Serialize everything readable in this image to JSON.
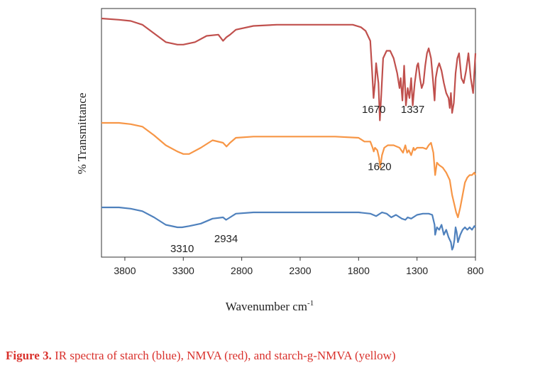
{
  "chart_data": {
    "type": "line",
    "title": "",
    "ylabel": "% Transmittance",
    "xlabel_main": "Wavenumber  cm",
    "xlabel_sup": "-1",
    "xlim": [
      4000,
      800
    ],
    "xticks": [
      3800,
      3300,
      2800,
      2300,
      1800,
      1300,
      800
    ],
    "grid": false,
    "legend": "none",
    "series": [
      {
        "color": "#c0504d",
        "x": [
          4000,
          3850,
          3750,
          3650,
          3550,
          3450,
          3350,
          3300,
          3200,
          3100,
          3000,
          2960,
          2930,
          2900,
          2850,
          2700,
          2500,
          2200,
          2000,
          1850,
          1780,
          1740,
          1700,
          1685,
          1672,
          1660,
          1650,
          1630,
          1618,
          1605,
          1590,
          1560,
          1530,
          1500,
          1470,
          1450,
          1440,
          1425,
          1410,
          1395,
          1380,
          1365,
          1350,
          1337,
          1320,
          1300,
          1290,
          1275,
          1260,
          1245,
          1230,
          1215,
          1200,
          1180,
          1165,
          1150,
          1140,
          1125,
          1110,
          1090,
          1070,
          1050,
          1030,
          1020,
          1010,
          1000,
          985,
          970,
          955,
          940,
          920,
          900,
          880,
          860,
          840,
          820,
          800
        ],
        "y": [
          96,
          95.5,
          95,
          93.5,
          90,
          86.5,
          85.5,
          85.5,
          86.5,
          89,
          89.5,
          87,
          88.5,
          89.5,
          91.5,
          93,
          93.5,
          93.5,
          93.5,
          93.5,
          92.5,
          91,
          87,
          75,
          64,
          70,
          78,
          70,
          55,
          66,
          80,
          83,
          83,
          80,
          74,
          68,
          72,
          63,
          77,
          61,
          68,
          64,
          72,
          61,
          70,
          77,
          78,
          72,
          68,
          70,
          77,
          82,
          84,
          80,
          72,
          63,
          72,
          76,
          78,
          75,
          70,
          66,
          64,
          60,
          66,
          58,
          62,
          74,
          80,
          82,
          72,
          70,
          75,
          82,
          72,
          66,
          82
        ]
      },
      {
        "color": "#f79646",
        "x": [
          4000,
          3850,
          3750,
          3650,
          3550,
          3450,
          3350,
          3300,
          3250,
          3150,
          3050,
          2960,
          2930,
          2900,
          2850,
          2700,
          2500,
          2200,
          2000,
          1800,
          1750,
          1700,
          1680,
          1670,
          1660,
          1640,
          1625,
          1615,
          1600,
          1580,
          1550,
          1500,
          1450,
          1420,
          1400,
          1385,
          1370,
          1350,
          1330,
          1320,
          1300,
          1280,
          1250,
          1220,
          1200,
          1180,
          1160,
          1145,
          1130,
          1110,
          1080,
          1050,
          1020,
          1000,
          980,
          965,
          950,
          930,
          910,
          890,
          870,
          850,
          830,
          810,
          800
        ],
        "y": [
          54,
          54,
          53.5,
          52.5,
          49,
          45,
          42.5,
          41.5,
          41.5,
          44,
          47,
          46,
          44.5,
          46,
          48,
          48.5,
          48.5,
          48.5,
          48.5,
          48,
          46.5,
          46.5,
          44,
          42.5,
          44,
          43,
          40,
          36,
          41,
          44,
          45,
          45,
          44,
          42,
          45,
          42,
          43,
          41,
          44,
          43,
          44,
          44,
          44,
          43.5,
          45,
          46,
          42,
          33,
          38,
          37,
          36,
          34,
          31,
          25,
          21,
          18,
          16,
          20,
          25,
          30,
          32,
          33,
          33,
          34,
          33
        ]
      },
      {
        "color": "#4f81bd",
        "x": [
          4000,
          3850,
          3750,
          3650,
          3550,
          3450,
          3350,
          3310,
          3250,
          3150,
          3050,
          2960,
          2934,
          2900,
          2850,
          2700,
          2500,
          2200,
          2000,
          1800,
          1700,
          1650,
          1600,
          1560,
          1520,
          1480,
          1430,
          1400,
          1380,
          1350,
          1300,
          1250,
          1200,
          1170,
          1150,
          1145,
          1130,
          1110,
          1090,
          1070,
          1050,
          1030,
          1010,
          1000,
          990,
          980,
          970,
          960,
          950,
          930,
          910,
          890,
          870,
          850,
          830,
          810,
          800
        ],
        "y": [
          20,
          20,
          19.5,
          18.5,
          16,
          13,
          12,
          12,
          12.5,
          13.5,
          15.5,
          16,
          15,
          16,
          17.5,
          18,
          18,
          18,
          18,
          18,
          17.5,
          16.5,
          18,
          17.5,
          16,
          17,
          15.5,
          15,
          16,
          15.5,
          17,
          17.5,
          17.5,
          17,
          13,
          9,
          12,
          11,
          13,
          9,
          11,
          8,
          6,
          3,
          4,
          7,
          12,
          10,
          6,
          9,
          11,
          12,
          11,
          12,
          11,
          12.5,
          12
        ]
      }
    ],
    "annotations": [
      {
        "text": "1670",
        "x": 1670,
        "y": 58
      },
      {
        "text": "1337",
        "x": 1337,
        "y": 58
      },
      {
        "text": "1620",
        "x": 1620,
        "y": 35
      },
      {
        "text": "3310",
        "x": 3310,
        "y": 2
      },
      {
        "text": "2934",
        "x": 2934,
        "y": 6
      }
    ],
    "ylim": [
      0,
      100
    ]
  },
  "caption": {
    "label": "Figure 3.",
    "text": " IR spectra of starch (blue), NMVA (red), and starch-g-NMVA (yellow)"
  }
}
